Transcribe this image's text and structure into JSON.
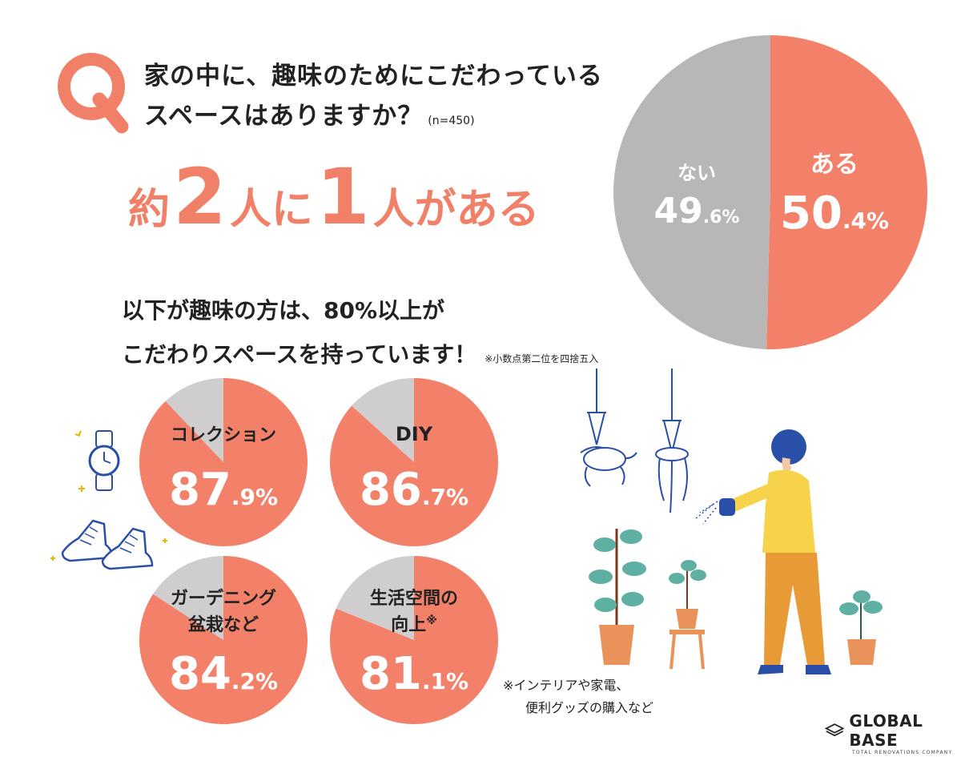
{
  "question": {
    "letter": "Q",
    "line1": "家の中に、趣味のためにこだわっている",
    "line2": "スペースはありますか？",
    "sample": "(n=450)"
  },
  "headline": {
    "p1": "約",
    "n1": "2",
    "p2": "人に",
    "n2": "1",
    "p3": "人がある"
  },
  "subheading": {
    "line1": "以下が趣味の方は、80%以上が",
    "line2": "こだわりスペースを持っています！",
    "note": "※小数点第二位を四捨五入"
  },
  "colors": {
    "yes": "#f38169",
    "no": "#b8b6b6",
    "accent": "#f08068"
  },
  "chart_data": [
    {
      "type": "pie",
      "slices": [
        {
          "label": "ある",
          "value": 50.4,
          "int": "50",
          "dec": ".4%"
        },
        {
          "label": "ない",
          "value": 49.6,
          "int": "49",
          "dec": ".6%"
        }
      ]
    },
    {
      "type": "pie",
      "label": "コレクション",
      "value": 87.9,
      "int": "87",
      "dec": ".9%"
    },
    {
      "type": "pie",
      "label": "DIY",
      "value": 86.7,
      "int": "86",
      "dec": ".7%"
    },
    {
      "type": "pie",
      "label": "ガーデニング",
      "label2": "盆栽など",
      "value": 84.2,
      "int": "84",
      "dec": ".2%"
    },
    {
      "type": "pie",
      "label": "生活空間の",
      "label2": "向上",
      "sup": "※",
      "value": 81.1,
      "int": "81",
      "dec": ".1%"
    }
  ],
  "footnote": {
    "line1": "※インテリアや家電、",
    "line2": "便利グッズの購入など"
  },
  "logo": {
    "name": "GLOBAL BASE",
    "tagline": "TOTAL RENOVATIONS COMPANY"
  },
  "icons": [
    "watch-icon",
    "sneakers-icon",
    "sparkle-icon",
    "hanging-plant-icon",
    "potted-plant-icon",
    "person-watering-icon"
  ]
}
